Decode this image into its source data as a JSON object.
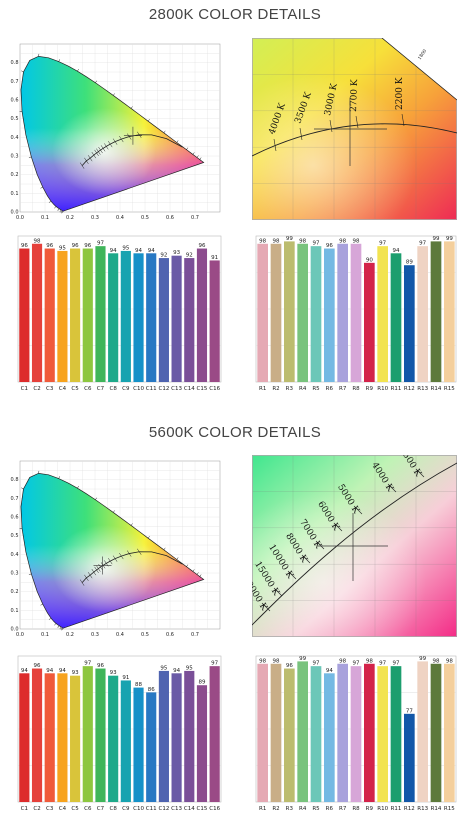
{
  "sections": [
    {
      "title": "2800K COLOR DETAILS",
      "cie": {
        "xticks": [
          "0.0",
          "0.1",
          "0.2",
          "0.3",
          "0.4",
          "0.5",
          "0.6",
          "0.7"
        ],
        "yticks": [
          "0.0",
          "0.1",
          "0.2",
          "0.3",
          "0.4",
          "0.5",
          "0.6",
          "0.7",
          "0.8"
        ]
      },
      "zoom": {
        "labels": [
          "4000 K",
          "3500 K",
          "3000 K",
          "2700 K",
          "2200 K",
          "1800"
        ]
      },
      "cri_c": {
        "categories": [
          "C1",
          "C2",
          "C3",
          "C4",
          "C5",
          "C6",
          "C7",
          "C8",
          "C9",
          "C10",
          "C11",
          "C12",
          "C13",
          "C14",
          "C15",
          "C16"
        ],
        "values": [
          96,
          98,
          96,
          95,
          96,
          96,
          97,
          94,
          95,
          94,
          94,
          92,
          93,
          92,
          96,
          91
        ]
      },
      "cri_r": {
        "categories": [
          "R1",
          "R2",
          "R3",
          "R4",
          "R5",
          "R6",
          "R7",
          "R8",
          "R9",
          "R10",
          "R11",
          "R12",
          "R13",
          "R14",
          "R15"
        ],
        "values": [
          98,
          98,
          99,
          98,
          97,
          96,
          98,
          98,
          90,
          97,
          94,
          89,
          97,
          99,
          99
        ]
      }
    },
    {
      "title": "5600K COLOR DETAILS",
      "cie": {
        "xticks": [
          "0.0",
          "0.1",
          "0.2",
          "0.3",
          "0.4",
          "0.5",
          "0.6",
          "0.7"
        ],
        "yticks": [
          "0.0",
          "0.1",
          "0.2",
          "0.3",
          "0.4",
          "0.5",
          "0.6",
          "0.7",
          "0.8"
        ]
      },
      "zoom": {
        "labels": [
          "3500 K",
          "4000 K",
          "5000 K",
          "6000 K",
          "7000 K",
          "8000 K",
          "10000 K",
          "15000 K",
          "20000 K"
        ]
      },
      "cri_c": {
        "categories": [
          "C1",
          "C2",
          "C3",
          "C4",
          "C5",
          "C6",
          "C7",
          "C8",
          "C9",
          "C10",
          "C11",
          "C12",
          "C13",
          "C14",
          "C15",
          "C16"
        ],
        "values": [
          94,
          96,
          94,
          94,
          93,
          97,
          96,
          93,
          91,
          88,
          86,
          95,
          94,
          95,
          89,
          97
        ]
      },
      "cri_r": {
        "categories": [
          "R1",
          "R2",
          "R3",
          "R4",
          "R5",
          "R6",
          "R7",
          "R8",
          "R9",
          "R10",
          "R11",
          "R12",
          "R13",
          "R14",
          "R15"
        ],
        "values": [
          98,
          98,
          96,
          99,
          97,
          94,
          98,
          97,
          98,
          97,
          97,
          77,
          99,
          98,
          98
        ]
      }
    }
  ],
  "colors": {
    "c_bars": [
      "#dd2c2c",
      "#e5413b",
      "#f05a3a",
      "#f7a31e",
      "#d9c43a",
      "#8dc63f",
      "#3fb55a",
      "#1ea98a",
      "#17a3b0",
      "#1591c8",
      "#2878c3",
      "#4f64b0",
      "#6a5aa6",
      "#7a4f98",
      "#8c4c8e",
      "#9a4a86"
    ],
    "r_bars": [
      "#e5a9b4",
      "#c9ae87",
      "#bcbc6e",
      "#79c37d",
      "#6cc7b8",
      "#74b9e3",
      "#a8a2dc",
      "#d7a6d8",
      "#d3234a",
      "#f2e350",
      "#1c9e6e",
      "#1257a8",
      "#efd3c3",
      "#5d7a3c",
      "#f4cf9c"
    ]
  },
  "chart_data": [
    {
      "type": "bar",
      "title": "",
      "categories": [
        "C1",
        "C2",
        "C3",
        "C4",
        "C5",
        "C6",
        "C7",
        "C8",
        "C9",
        "C10",
        "C11",
        "C12",
        "C13",
        "C14",
        "C15",
        "C16"
      ],
      "values": [
        96,
        98,
        96,
        95,
        96,
        96,
        97,
        94,
        95,
        94,
        94,
        92,
        93,
        92,
        96,
        91
      ],
      "ylim": [
        0,
        100
      ]
    },
    {
      "type": "bar",
      "title": "",
      "categories": [
        "R1",
        "R2",
        "R3",
        "R4",
        "R5",
        "R6",
        "R7",
        "R8",
        "R9",
        "R10",
        "R11",
        "R12",
        "R13",
        "R14",
        "R15"
      ],
      "values": [
        98,
        98,
        99,
        98,
        97,
        96,
        98,
        98,
        90,
        97,
        94,
        89,
        97,
        99,
        99
      ],
      "ylim": [
        0,
        100
      ]
    },
    {
      "type": "bar",
      "title": "",
      "categories": [
        "C1",
        "C2",
        "C3",
        "C4",
        "C5",
        "C6",
        "C7",
        "C8",
        "C9",
        "C10",
        "C11",
        "C12",
        "C13",
        "C14",
        "C15",
        "C16"
      ],
      "values": [
        94,
        96,
        94,
        94,
        93,
        97,
        96,
        93,
        91,
        88,
        86,
        95,
        94,
        95,
        89,
        97
      ],
      "ylim": [
        0,
        100
      ]
    },
    {
      "type": "bar",
      "title": "",
      "categories": [
        "R1",
        "R2",
        "R3",
        "R4",
        "R5",
        "R6",
        "R7",
        "R8",
        "R9",
        "R10",
        "R11",
        "R12",
        "R13",
        "R14",
        "R15"
      ],
      "values": [
        98,
        98,
        96,
        99,
        97,
        94,
        98,
        97,
        98,
        97,
        97,
        77,
        99,
        98,
        98
      ],
      "ylim": [
        0,
        100
      ]
    }
  ]
}
